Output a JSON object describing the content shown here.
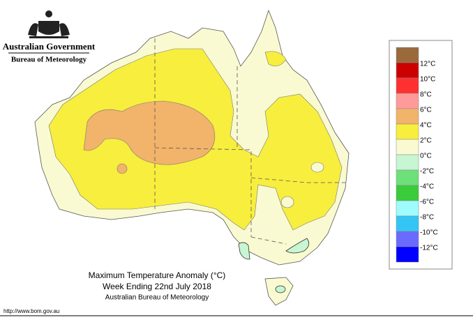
{
  "header": {
    "agency": "Australian Government",
    "bureau": "Bureau of Meteorology"
  },
  "legend": {
    "items": [
      {
        "label": null,
        "color": "#9a6a3c"
      },
      {
        "label": "12°C",
        "color": "#cc0000"
      },
      {
        "label": "10°C",
        "color": "#ff3030"
      },
      {
        "label": "8°C",
        "color": "#ff9a9a"
      },
      {
        "label": "6°C",
        "color": "#f2b36a"
      },
      {
        "label": "4°C",
        "color": "#f7ee3e"
      },
      {
        "label": "2°C",
        "color": "#fafad2"
      },
      {
        "label": "0°C",
        "color": "#c8f5d2"
      },
      {
        "label": "-2°C",
        "color": "#6ee07a"
      },
      {
        "label": "-4°C",
        "color": "#3acc3a"
      },
      {
        "label": "-6°C",
        "color": "#9ffcfc"
      },
      {
        "label": "-8°C",
        "color": "#33c6f5"
      },
      {
        "label": "-10°C",
        "color": "#6a6aff"
      },
      {
        "label": "-12°C",
        "color": "#0000ff"
      }
    ]
  },
  "title": {
    "line1": "Maximum Temperature Anomaly (°C)",
    "line2": "Week Ending 22nd July 2018",
    "line3": "Australian Bureau of Meteorology"
  },
  "url": "http://www.bom.gov.au"
}
